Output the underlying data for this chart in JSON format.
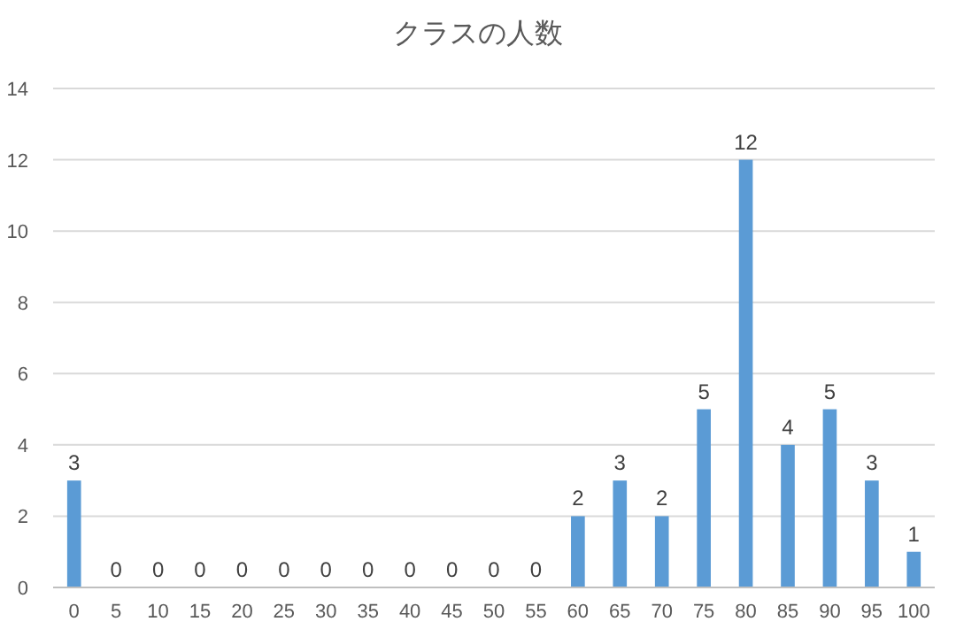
{
  "chart_data": {
    "type": "bar",
    "title": "クラスの人数",
    "categories": [
      "0",
      "5",
      "10",
      "15",
      "20",
      "25",
      "30",
      "35",
      "40",
      "45",
      "50",
      "55",
      "60",
      "65",
      "70",
      "75",
      "80",
      "85",
      "90",
      "95",
      "100"
    ],
    "values": [
      3,
      0,
      0,
      0,
      0,
      0,
      0,
      0,
      0,
      0,
      0,
      0,
      2,
      3,
      2,
      5,
      12,
      4,
      5,
      3,
      1
    ],
    "color": "#5b9bd5",
    "ylim": [
      0,
      14
    ],
    "yticks": [
      0,
      2,
      4,
      6,
      8,
      10,
      12,
      14
    ],
    "grid": "y",
    "data_labels": true
  }
}
